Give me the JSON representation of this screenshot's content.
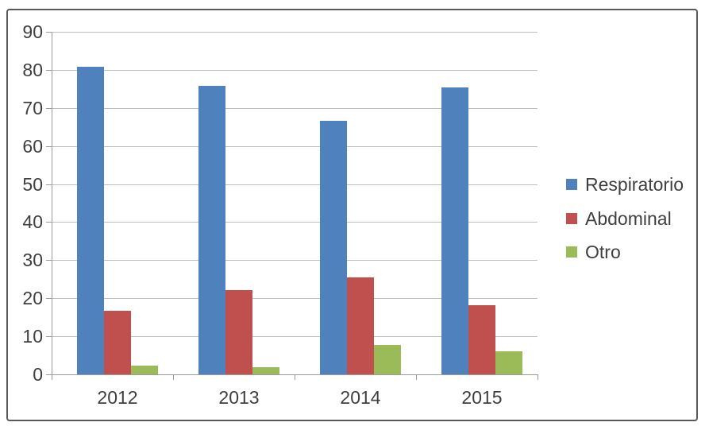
{
  "chart_data": {
    "type": "bar",
    "title": "",
    "categories": [
      "2012",
      "2013",
      "2014",
      "2015"
    ],
    "series": [
      {
        "name": "Respiratorio",
        "color": "#4F81BD",
        "values": [
          80.8,
          75.8,
          66.7,
          75.4
        ]
      },
      {
        "name": "Abdominal",
        "color": "#C0504D",
        "values": [
          16.7,
          22.2,
          25.4,
          18.2
        ]
      },
      {
        "name": "Otro",
        "color": "#9BBB59",
        "values": [
          2.2,
          1.8,
          7.7,
          6.1
        ]
      }
    ],
    "xlabel": "",
    "ylabel": "",
    "ylim": [
      0,
      90
    ],
    "yticks": [
      0,
      10,
      20,
      30,
      40,
      50,
      60,
      70,
      80,
      90
    ],
    "grid": true,
    "legend_position": "right"
  },
  "colors": {
    "background": "#FFFFFF",
    "border": "#595959",
    "gridline": "#BFBFBF",
    "axis": "#9B9B9B",
    "text": "#3F3F3F"
  }
}
